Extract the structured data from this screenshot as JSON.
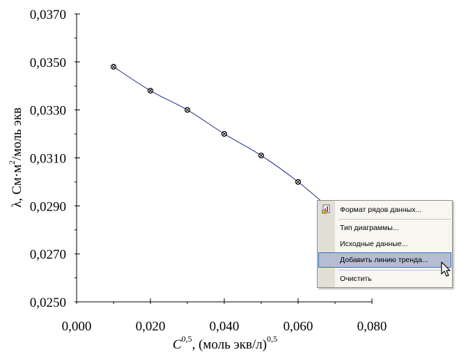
{
  "chart_data": {
    "type": "line",
    "x": [
      0.01,
      0.02,
      0.03,
      0.04,
      0.05,
      0.06,
      0.07
    ],
    "series": [
      {
        "values": [
          0.0348,
          0.0338,
          0.033,
          0.032,
          0.0311,
          0.03,
          0.0287
        ],
        "color": "#1b2a8c"
      }
    ],
    "xlim": [
      0,
      0.08
    ],
    "ylim": [
      0.025,
      0.037
    ],
    "x_ticks": [
      0.0,
      0.02,
      0.04,
      0.06,
      0.08
    ],
    "x_tick_labels": [
      "0,000",
      "0,020",
      "0,040",
      "0,060",
      "0,080"
    ],
    "y_ticks": [
      0.025,
      0.027,
      0.029,
      0.031,
      0.033,
      0.035,
      0.037
    ],
    "y_tick_labels": [
      "0,0250",
      "0,0270",
      "0,0290",
      "0,0310",
      "0,0330",
      "0,0350",
      "0,0370"
    ],
    "x_minor_step": 0.01,
    "y_minor_step": 0.001,
    "xlabel": {
      "c": "C",
      "sup1": "0,5",
      "mid": ", (моль экв/л)",
      "sup2": "0,5"
    },
    "ylabel": {
      "pre": "λ, См·м",
      "sup": "2",
      "post": "/моль экв"
    },
    "grid": false,
    "marker": "circle-x"
  },
  "context_menu": {
    "items": [
      {
        "name": "format-data-series",
        "label": "Формат рядов данных...",
        "icon": "format-series-icon"
      },
      {
        "name": "chart-type",
        "label": "Тип диаграммы..."
      },
      {
        "name": "source-data",
        "label": "Исходные данные..."
      },
      {
        "name": "add-trendline",
        "label": "Добавить линию тренда...",
        "highlighted": true
      },
      {
        "name": "clear",
        "label": "Очистить"
      }
    ]
  }
}
